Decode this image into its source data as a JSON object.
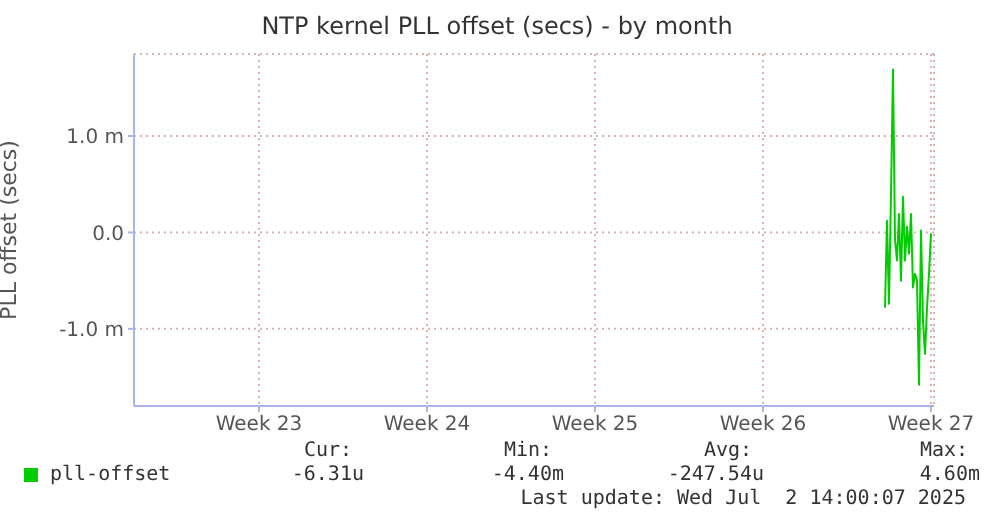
{
  "chart_data": {
    "type": "line",
    "title": "NTP kernel PLL offset (secs) - by month",
    "ylabel": "PLL offset (secs)",
    "categories": [
      null,
      null,
      null,
      null,
      null,
      null,
      null,
      null,
      null,
      null,
      null,
      null,
      null,
      null,
      null,
      null,
      null,
      null,
      null,
      null,
      null,
      null,
      null,
      null,
      null,
      null,
      null,
      null,
      null,
      null,
      null,
      null,
      null,
      null,
      null,
      null,
      null,
      null,
      null,
      null,
      null,
      null,
      null,
      null,
      null,
      null,
      null,
      null,
      null,
      null,
      null,
      null,
      null,
      null,
      null,
      null,
      null,
      null,
      null,
      null,
      null,
      null,
      "Week 23",
      null,
      null,
      null,
      null,
      null,
      null,
      null,
      null,
      null,
      null,
      null,
      null,
      null,
      null,
      null,
      null,
      null,
      null,
      null,
      null,
      null,
      null,
      null,
      null,
      null,
      null,
      null,
      null,
      null,
      null,
      null,
      null,
      null,
      null,
      null,
      null,
      null,
      null,
      null,
      null,
      null,
      null,
      null,
      null,
      null,
      null,
      null,
      null,
      null,
      null,
      null,
      null,
      null,
      null,
      null,
      null,
      null,
      null,
      null,
      null,
      null,
      null,
      null,
      null,
      null,
      null,
      null,
      null,
      null,
      null,
      null,
      null,
      null,
      null,
      null,
      null,
      null,
      null,
      null,
      null,
      null,
      null,
      null,
      "Week 24",
      null,
      null,
      null,
      null,
      null,
      null,
      null,
      null,
      null,
      null,
      null,
      null,
      null,
      null,
      null,
      null,
      null,
      null,
      null,
      null,
      null,
      null,
      null,
      null,
      null,
      null,
      null,
      null,
      null,
      null,
      null,
      null,
      null,
      null,
      null,
      null,
      null,
      null,
      null,
      null,
      null,
      null,
      null,
      null,
      null,
      null,
      null,
      null,
      null,
      null,
      null,
      null,
      null,
      null,
      null,
      null,
      null,
      null,
      null,
      null,
      null,
      null,
      null,
      null,
      null,
      null,
      null,
      null,
      null,
      null,
      null,
      null,
      null,
      null,
      null,
      null,
      null,
      null,
      null,
      null,
      null,
      null,
      null,
      "Week 25",
      null,
      null,
      null,
      null,
      null,
      null,
      null,
      null,
      null,
      null,
      null,
      null,
      null,
      null,
      null,
      null,
      null,
      null,
      null,
      null,
      null,
      null,
      null,
      null,
      null,
      null,
      null,
      null,
      null,
      null,
      null,
      null,
      null,
      null,
      null,
      null,
      null,
      null,
      null,
      null,
      null,
      null,
      null,
      null,
      null,
      null,
      null,
      null,
      null,
      null,
      null,
      null,
      null,
      null,
      null,
      null,
      null,
      null,
      null,
      null,
      null,
      null,
      null,
      null,
      null,
      null,
      null,
      null,
      null,
      null,
      null,
      null,
      null,
      null,
      null,
      null,
      null,
      null,
      null,
      null,
      null,
      null,
      null,
      "Week 26",
      null,
      null,
      null,
      null,
      null,
      null,
      null,
      null,
      null,
      null,
      null,
      null,
      null,
      null,
      null,
      null,
      null,
      null,
      null,
      null,
      null,
      null,
      null,
      null,
      null,
      null,
      null,
      null,
      null,
      null,
      null,
      null,
      null,
      null,
      null,
      null,
      null,
      null,
      null,
      null,
      null,
      null,
      null,
      null,
      null,
      null,
      null,
      null,
      null,
      null,
      null,
      null,
      null,
      null,
      null,
      null,
      null,
      null,
      null,
      null,
      null,
      null,
      null,
      null,
      null,
      null,
      null,
      null,
      null,
      null,
      null,
      null,
      null,
      null,
      null,
      null,
      null,
      null,
      null,
      null,
      null,
      null,
      null,
      "Week 27",
      null
    ],
    "series": [
      {
        "name": "pll-offset",
        "color": "#00cc00",
        "values": [
          null,
          null,
          null,
          null,
          null,
          null,
          null,
          null,
          null,
          null,
          null,
          null,
          null,
          null,
          null,
          null,
          null,
          null,
          null,
          null,
          null,
          null,
          null,
          null,
          null,
          null,
          null,
          null,
          null,
          null,
          null,
          null,
          null,
          null,
          null,
          null,
          null,
          null,
          null,
          null,
          null,
          null,
          null,
          null,
          null,
          null,
          null,
          null,
          null,
          null,
          null,
          null,
          null,
          null,
          null,
          null,
          null,
          null,
          null,
          null,
          null,
          null,
          null,
          null,
          null,
          null,
          null,
          null,
          null,
          null,
          null,
          null,
          null,
          null,
          null,
          null,
          null,
          null,
          null,
          null,
          null,
          null,
          null,
          null,
          null,
          null,
          null,
          null,
          null,
          null,
          null,
          null,
          null,
          null,
          null,
          null,
          null,
          null,
          null,
          null,
          null,
          null,
          null,
          null,
          null,
          null,
          null,
          null,
          null,
          null,
          null,
          null,
          null,
          null,
          null,
          null,
          null,
          null,
          null,
          null,
          null,
          null,
          null,
          null,
          null,
          null,
          null,
          null,
          null,
          null,
          null,
          null,
          null,
          null,
          null,
          null,
          null,
          null,
          null,
          null,
          null,
          null,
          null,
          null,
          null,
          null,
          null,
          null,
          null,
          null,
          null,
          null,
          null,
          null,
          null,
          null,
          null,
          null,
          null,
          null,
          null,
          null,
          null,
          null,
          null,
          null,
          null,
          null,
          null,
          null,
          null,
          null,
          null,
          null,
          null,
          null,
          null,
          null,
          null,
          null,
          null,
          null,
          null,
          null,
          null,
          null,
          null,
          null,
          null,
          null,
          null,
          null,
          null,
          null,
          null,
          null,
          null,
          null,
          null,
          null,
          null,
          null,
          null,
          null,
          null,
          null,
          null,
          null,
          null,
          null,
          null,
          null,
          null,
          null,
          null,
          null,
          null,
          null,
          null,
          null,
          null,
          null,
          null,
          null,
          null,
          null,
          null,
          null,
          null,
          null,
          null,
          null,
          null,
          null,
          null,
          null,
          null,
          null,
          null,
          null,
          null,
          null,
          null,
          null,
          null,
          null,
          null,
          null,
          null,
          null,
          null,
          null,
          null,
          null,
          null,
          null,
          null,
          null,
          null,
          null,
          null,
          null,
          null,
          null,
          null,
          null,
          null,
          null,
          null,
          null,
          null,
          null,
          null,
          null,
          null,
          null,
          null,
          null,
          null,
          null,
          null,
          null,
          null,
          null,
          null,
          null,
          null,
          null,
          null,
          null,
          null,
          null,
          null,
          null,
          null,
          null,
          null,
          null,
          null,
          null,
          null,
          null,
          null,
          null,
          null,
          null,
          null,
          null,
          null,
          null,
          null,
          null,
          null,
          null,
          null,
          null,
          null,
          null,
          null,
          null,
          null,
          null,
          null,
          null,
          null,
          null,
          null,
          null,
          null,
          null,
          null,
          null,
          null,
          null,
          null,
          null,
          null,
          null,
          null,
          null,
          null,
          null,
          null,
          null,
          null,
          null,
          null,
          null,
          null,
          null,
          null,
          null,
          null,
          null,
          null,
          null,
          null,
          null,
          null,
          null,
          null,
          null,
          null,
          null,
          null,
          null,
          null,
          null,
          null,
          null,
          null,
          null,
          null,
          null,
          null,
          -0.78,
          0.12,
          -0.74,
          0.4,
          1.69,
          -0.08,
          -0.29,
          0.19,
          -0.5,
          0.37,
          -0.29,
          0.06,
          -0.22,
          0.19,
          -0.57,
          -0.43,
          -0.5,
          -1.58,
          0.02,
          -0.92,
          -1.26,
          -0.78,
          -0.43,
          -0.01,
          null
        ]
      }
    ],
    "ylim": [
      -1.8,
      1.85
    ],
    "yticks": [
      {
        "value": -1,
        "label": "-1.0 m"
      },
      {
        "value": 0,
        "label": "0.0"
      },
      {
        "value": 1,
        "label": "1.0 m"
      }
    ],
    "grid": true,
    "legend": "bottom left",
    "marker": "none",
    "line_style": "solid",
    "annotations": [
      "Cur:",
      "Min:",
      "Avg:",
      "Max:",
      "-6.31u",
      "-4.40m",
      "-247.54u",
      "4.60m",
      "Last update: Wed Jul  2 14:00:07 2025"
    ]
  }
}
